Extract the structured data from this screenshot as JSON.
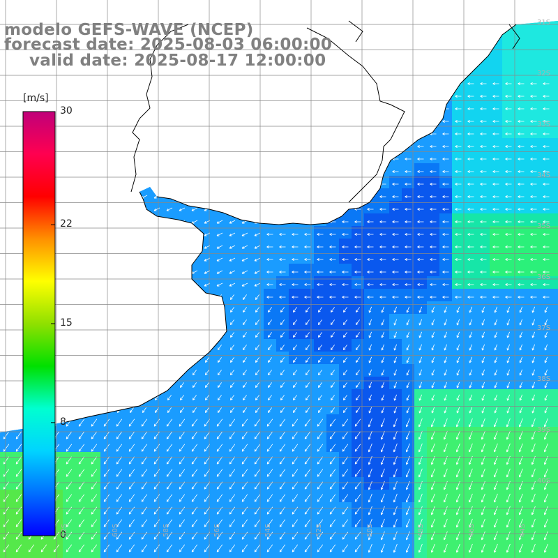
{
  "title": {
    "line1": "modelo GEFS-WAVE (NCEP)",
    "line2": "forecast date: 2025-08-03 06:00:00",
    "line3": "valid date: 2025-08-17 12:00:00"
  },
  "colorbar": {
    "units": "[m/s]",
    "ticks": [
      "30",
      "22",
      "15",
      "8",
      "0"
    ],
    "tick_values": [
      30,
      22,
      15,
      8,
      0
    ],
    "range": [
      0,
      30
    ],
    "colors": [
      "#0000ff",
      "#0070ff",
      "#00d4ff",
      "#00ffd0",
      "#00e000",
      "#90e000",
      "#ffff00",
      "#ff9000",
      "#ff0000",
      "#ff0050",
      "#c0007a"
    ]
  },
  "map": {
    "lat_labels": [
      "31S",
      "32S",
      "33S",
      "34S",
      "35S",
      "36S",
      "37S",
      "38S",
      "39S",
      "40S"
    ],
    "lon_labels": [
      "62S",
      "60S",
      "58S",
      "56S",
      "54S",
      "52S",
      "50S",
      "48S",
      "46S",
      "44S"
    ],
    "land_color": "#ffffff",
    "grid_color": "#888888",
    "coast_color": "#000000",
    "arrow_color": "#ffffff"
  }
}
